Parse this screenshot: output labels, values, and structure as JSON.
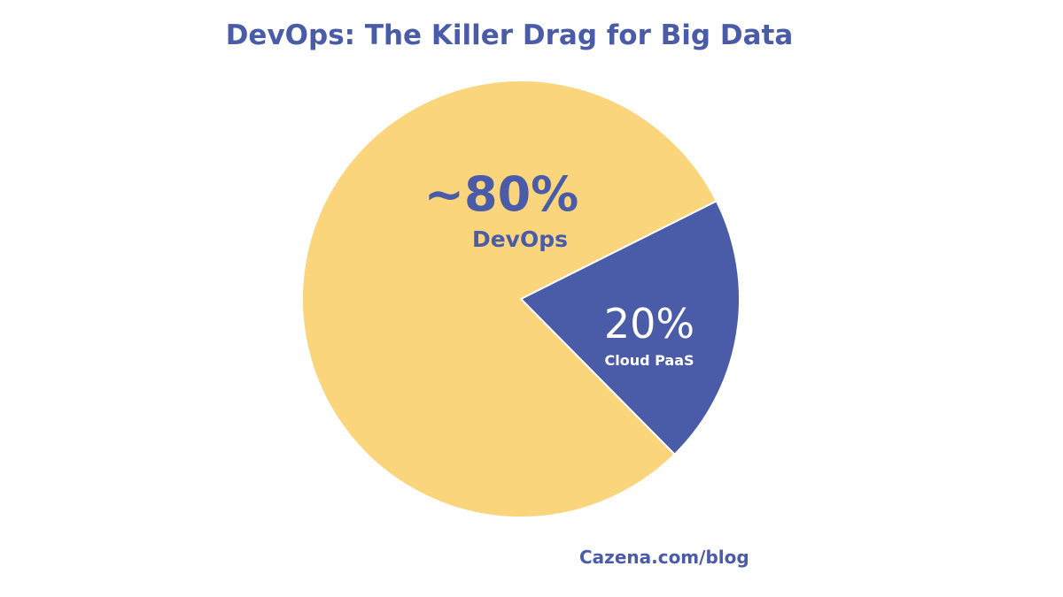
{
  "chart_data": {
    "type": "pie",
    "title": "DevOps: The Killer Drag for Big Data",
    "slices": [
      {
        "name": "DevOps",
        "label": "~80%",
        "value": 80,
        "color": "#fbd57c",
        "text_color": "#4a5ba8"
      },
      {
        "name": "Cloud PaaS",
        "label": "20%",
        "value": 20,
        "color": "#4a5ba8",
        "text_color": "#ffffff"
      }
    ]
  },
  "footer": {
    "source": "Cazena.com/blog"
  }
}
